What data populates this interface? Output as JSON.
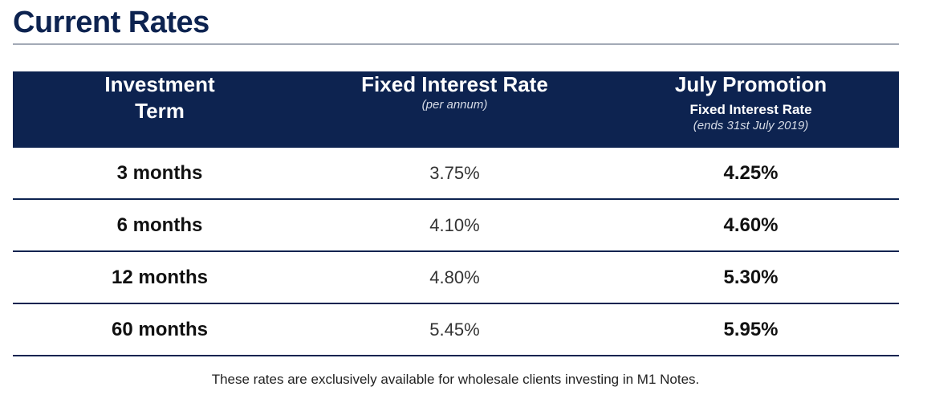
{
  "title": "Current Rates",
  "table": {
    "headers": {
      "term": "Investment Term",
      "fixed_rate": "Fixed Interest Rate",
      "fixed_rate_note": "(per annum)",
      "promotion": "July Promotion",
      "promotion_sub": "Fixed Interest Rate",
      "promotion_note": "(ends 31st July 2019)"
    },
    "rows": [
      {
        "term": "3 months",
        "fixed_rate": "3.75%",
        "promo_rate": "4.25%"
      },
      {
        "term": "6 months",
        "fixed_rate": "4.10%",
        "promo_rate": "4.60%"
      },
      {
        "term": "12 months",
        "fixed_rate": "4.80%",
        "promo_rate": "5.30%"
      },
      {
        "term": "60 months",
        "fixed_rate": "5.45%",
        "promo_rate": "5.95%"
      }
    ]
  },
  "footnote": "These rates are exclusively available for wholesale clients investing in M1 Notes.",
  "colors": {
    "navy": "#0d2350",
    "rule": "#a3aab6"
  }
}
